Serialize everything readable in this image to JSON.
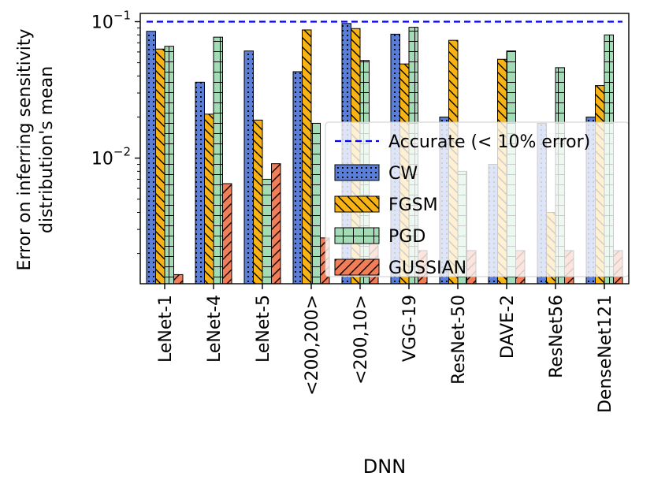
{
  "chart_data": {
    "type": "bar",
    "title": "",
    "xlabel": "DNN",
    "ylabel": [
      "Error on inferring sensitivity",
      "distribution's mean"
    ],
    "yscale": "log",
    "ylim": [
      0.0012,
      0.115
    ],
    "yticks": [
      {
        "value": 0.1,
        "base": "10",
        "exp": "−1"
      },
      {
        "value": 0.01,
        "base": "10",
        "exp": "−2"
      }
    ],
    "categories": [
      "LeNet-1",
      "LeNet-4",
      "LeNet-5",
      "<200,200>",
      "<200,10>",
      "VGG-19",
      "ResNet-50",
      "DAVE-2",
      "ResNet56",
      "DenseNet121"
    ],
    "series": [
      {
        "name": "CW",
        "color": "#5b7fd9",
        "hatch": "dots",
        "values": [
          0.085,
          0.036,
          0.061,
          0.043,
          0.097,
          0.081,
          0.02,
          0.009,
          0.018,
          0.02
        ]
      },
      {
        "name": "FGSM",
        "color": "#f7b316",
        "hatch": "backslash",
        "values": [
          0.063,
          0.021,
          0.019,
          0.087,
          0.089,
          0.049,
          0.073,
          0.053,
          0.004,
          0.034
        ]
      },
      {
        "name": "PGD",
        "color": "#a3dbb6",
        "hatch": "grid",
        "values": [
          0.066,
          0.077,
          0.007,
          0.018,
          0.052,
          0.091,
          0.008,
          0.061,
          0.046,
          0.08
        ]
      },
      {
        "name": "GUSSIAN",
        "color": "#f37d57",
        "hatch": "slash",
        "values": [
          0.0014,
          0.0065,
          0.0091,
          0.0026,
          0.0026,
          0.0021,
          0.0021,
          0.0021,
          0.0021,
          0.0021
        ]
      }
    ],
    "reference_line": {
      "name": "Accurate (< 10% error)",
      "value": 0.1,
      "color": "#0000ff",
      "style": "dashed"
    },
    "legend": {
      "placement": "right"
    },
    "grid": false
  }
}
